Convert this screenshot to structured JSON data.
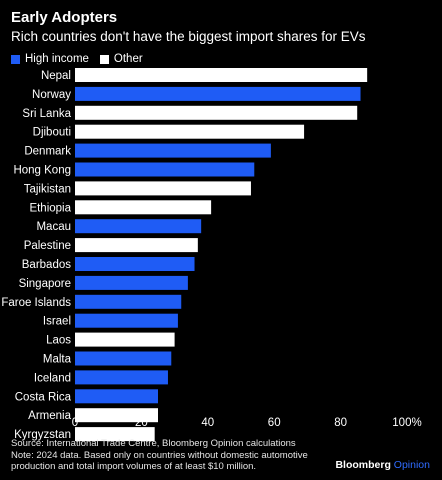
{
  "header": {
    "title": "Early Adopters",
    "subtitle": "Rich countries don't have the biggest import shares for EVs"
  },
  "legend": [
    {
      "label": "High income",
      "color": "#1f5cf5"
    },
    {
      "label": "Other",
      "color": "#ffffff"
    }
  ],
  "chart_data": {
    "type": "bar",
    "orientation": "horizontal",
    "categories": [
      "Nepal",
      "Norway",
      "Sri Lanka",
      "Djibouti",
      "Denmark",
      "Hong Kong",
      "Tajikistan",
      "Ethiopia",
      "Macau",
      "Palestine",
      "Barbados",
      "Singapore",
      "Faroe Islands",
      "Israel",
      "Laos",
      "Malta",
      "Iceland",
      "Costa Rica",
      "Armenia",
      "Kyrgyzstan"
    ],
    "values": [
      88,
      86,
      85,
      69,
      59,
      54,
      53,
      41,
      38,
      37,
      36,
      34,
      32,
      31,
      30,
      29,
      28,
      25,
      25,
      24
    ],
    "groups": [
      "Other",
      "High income",
      "Other",
      "Other",
      "High income",
      "High income",
      "Other",
      "Other",
      "High income",
      "Other",
      "High income",
      "High income",
      "High income",
      "High income",
      "Other",
      "High income",
      "High income",
      "High income",
      "Other",
      "Other"
    ],
    "colors": {
      "High income": "#1f5cf5",
      "Other": "#ffffff"
    },
    "xlim": [
      0,
      100
    ],
    "xticks": [
      "0",
      "20",
      "40",
      "60",
      "80",
      "100%"
    ],
    "grid": false,
    "legend_position": "top-left"
  },
  "footer": {
    "source": "Source: International Trade Centre, Bloomberg Opinion calculations",
    "note1": "Note: 2024 data. Based only on countries without domestic automotive",
    "note2": "production and total import volumes of at least $10 million.",
    "brand_main": "Bloomberg",
    "brand_sub": "Opinion"
  }
}
